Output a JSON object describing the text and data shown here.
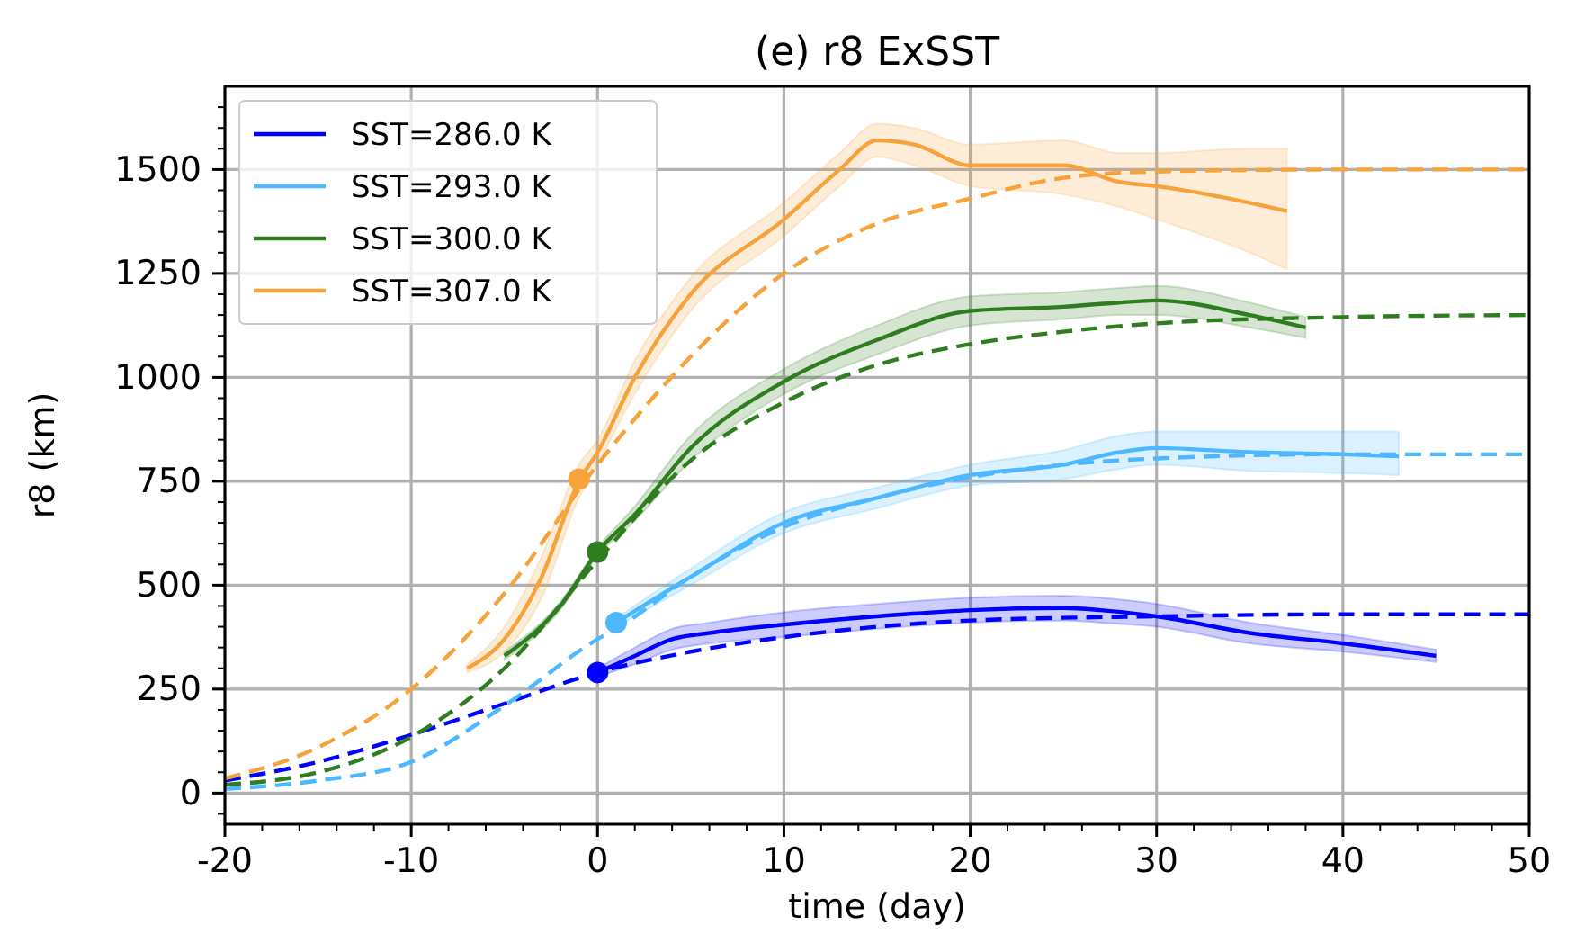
{
  "chart_data": {
    "type": "line",
    "title": "(e) r8 ExSST",
    "xlabel": "time (day)",
    "ylabel": "r8 (km)",
    "xlim": [
      -20,
      50
    ],
    "xticks": [
      -20,
      -10,
      0,
      10,
      20,
      30,
      40,
      50
    ],
    "ylim": [
      -75,
      1700
    ],
    "yticks": [
      0,
      250,
      500,
      750,
      1000,
      1250,
      1500
    ],
    "grid": true,
    "legend": "top left",
    "series": [
      {
        "name": "SST=286.0 K",
        "color": "#0000ff",
        "line_style": "solid",
        "x": [
          0,
          2,
          4,
          6,
          10,
          15,
          20,
          25,
          27,
          30,
          35,
          40,
          45
        ],
        "values": [
          290,
          330,
          370,
          385,
          405,
          425,
          440,
          445,
          440,
          425,
          385,
          360,
          330
        ],
        "lower": [
          280,
          310,
          345,
          360,
          375,
          395,
          410,
          415,
          410,
          400,
          360,
          340,
          315
        ],
        "upper": [
          300,
          350,
          395,
          410,
          435,
          455,
          470,
          475,
          470,
          455,
          410,
          380,
          345
        ]
      },
      {
        "name": "SST=293.0 K",
        "color": "#4db8ff",
        "line_style": "solid",
        "x": [
          1,
          5,
          10,
          15,
          20,
          25,
          28,
          30,
          35,
          40,
          43
        ],
        "values": [
          410,
          520,
          650,
          710,
          765,
          790,
          820,
          830,
          820,
          815,
          810
        ],
        "lower": [
          400,
          500,
          625,
          685,
          740,
          755,
          780,
          790,
          775,
          770,
          765
        ],
        "upper": [
          420,
          540,
          675,
          735,
          790,
          825,
          860,
          870,
          870,
          870,
          870
        ]
      },
      {
        "name": "SST=300.0 K",
        "color": "#2e7d1e",
        "line_style": "solid",
        "x": [
          -5,
          -2,
          0,
          2,
          5,
          10,
          15,
          20,
          25,
          28,
          30,
          35,
          38
        ],
        "values": [
          330,
          450,
          580,
          670,
          830,
          990,
          1090,
          1160,
          1170,
          1180,
          1185,
          1150,
          1120
        ],
        "lower": [
          320,
          440,
          570,
          655,
          800,
          960,
          1055,
          1125,
          1140,
          1150,
          1150,
          1120,
          1095
        ],
        "upper": [
          340,
          460,
          590,
          690,
          860,
          1020,
          1125,
          1195,
          1205,
          1215,
          1220,
          1180,
          1145
        ]
      },
      {
        "name": "SST=307.0 K",
        "color": "#f5a33a",
        "line_style": "solid",
        "x": [
          -7,
          -5,
          -3,
          -1,
          0,
          2,
          5,
          10,
          13,
          15,
          17,
          20,
          25,
          28,
          30,
          35,
          37
        ],
        "values": [
          300,
          370,
          520,
          750,
          820,
          1000,
          1200,
          1380,
          1500,
          1570,
          1560,
          1510,
          1510,
          1470,
          1460,
          1420,
          1400
        ],
        "lower": [
          290,
          340,
          470,
          710,
          790,
          960,
          1160,
          1340,
          1460,
          1530,
          1510,
          1460,
          1440,
          1410,
          1380,
          1300,
          1260
        ],
        "upper": [
          310,
          400,
          570,
          790,
          850,
          1040,
          1240,
          1420,
          1540,
          1610,
          1600,
          1560,
          1570,
          1540,
          1540,
          1550,
          1550
        ]
      },
      {
        "color": "#0000ff",
        "line_style": "dashed",
        "x": [
          -20,
          -15,
          -10,
          -5,
          0,
          5,
          10,
          15,
          20,
          30,
          40,
          50
        ],
        "values": [
          30,
          75,
          140,
          215,
          290,
          340,
          375,
          400,
          415,
          425,
          430,
          430
        ]
      },
      {
        "color": "#4db8ff",
        "line_style": "dashed",
        "x": [
          -20,
          -15,
          -10,
          -5,
          0,
          1,
          5,
          10,
          15,
          20,
          25,
          30,
          40,
          50
        ],
        "values": [
          10,
          30,
          75,
          210,
          370,
          395,
          520,
          640,
          710,
          760,
          790,
          805,
          815,
          815
        ]
      },
      {
        "color": "#2e7d1e",
        "line_style": "dashed",
        "x": [
          -20,
          -15,
          -10,
          -5,
          0,
          5,
          10,
          15,
          20,
          25,
          30,
          40,
          50
        ],
        "values": [
          20,
          50,
          135,
          300,
          560,
          800,
          940,
          1030,
          1080,
          1110,
          1130,
          1145,
          1150
        ]
      },
      {
        "color": "#f5a33a",
        "line_style": "dashed",
        "x": [
          -20,
          -15,
          -10,
          -5,
          0,
          5,
          10,
          15,
          20,
          25,
          30,
          40,
          50
        ],
        "values": [
          35,
          110,
          250,
          480,
          790,
          1050,
          1250,
          1370,
          1430,
          1480,
          1495,
          1500,
          1500
        ]
      },
      {
        "type": "scatter",
        "marker": "circle",
        "color": "#0000ff",
        "x": [
          0
        ],
        "values": [
          290
        ]
      },
      {
        "type": "scatter",
        "marker": "circle",
        "color": "#4db8ff",
        "x": [
          1
        ],
        "values": [
          410
        ]
      },
      {
        "type": "scatter",
        "marker": "circle",
        "color": "#2e7d1e",
        "x": [
          0
        ],
        "values": [
          580
        ]
      },
      {
        "type": "scatter",
        "marker": "circle",
        "color": "#f5a33a",
        "x": [
          -1
        ],
        "values": [
          755
        ]
      }
    ]
  }
}
